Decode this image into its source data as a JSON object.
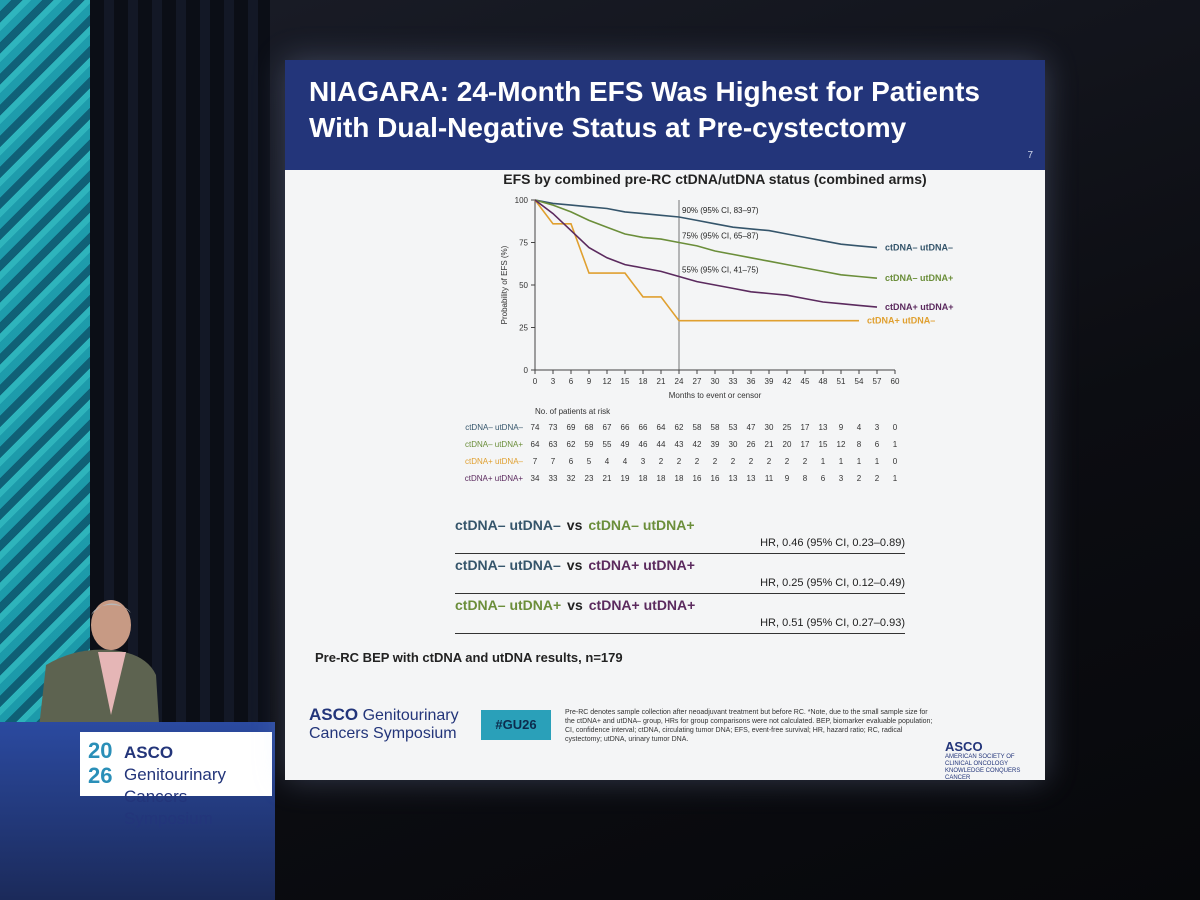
{
  "slide": {
    "title": "NIAGARA: 24-Month EFS Was Highest for Patients With Dual-Negative Status at Pre-cystectomy",
    "page_number": "7",
    "population_note": "Pre-RC BEP with ctDNA and utDNA results, n=179",
    "comparisons": [
      {
        "a": "ctDNA– utDNA–",
        "vs": "vs",
        "b": "ctDNA– utDNA+",
        "hr": "HR, 0.46 (95% CI, 0.23–0.89)"
      },
      {
        "a": "ctDNA– utDNA–",
        "vs": "vs",
        "b": "ctDNA+ utDNA+",
        "hr": "HR, 0.25 (95% CI, 0.12–0.49)"
      },
      {
        "a": "ctDNA– utDNA+",
        "vs": "vs",
        "b": "ctDNA+ utDNA+",
        "hr": "HR, 0.51 (95% CI, 0.27–0.93)"
      }
    ],
    "footnote": "Pre-RC denotes sample collection after neoadjuvant treatment but before RC. *Note, due to the small sample size for the ctDNA+ and utDNA– group, HRs for group comparisons were not calculated. BEP, biomarker evaluable population; CI, confidence interval; ctDNA, circulating tumor DNA; EFS, event-free survival; HR, hazard ratio; RC, radical cystectomy; utDNA, urinary tumor DNA.",
    "logo_left": {
      "brand": "ASCO",
      "line1": "Genitourinary",
      "line2": "Cancers Symposium"
    },
    "hashtag": "#GU26",
    "logo_right": {
      "brand": "ASCO",
      "org": "AMERICAN SOCIETY OF CLINICAL ONCOLOGY",
      "motto": "KNOWLEDGE CONQUERS CANCER"
    }
  },
  "podium": {
    "year_top": "20",
    "year_bottom": "26",
    "brand": "ASCO",
    "line1": "Genitourinary",
    "line2": "Cancers Symposium"
  },
  "chart_data": {
    "type": "line",
    "title": "EFS by combined pre-RC ctDNA/utDNA status (combined arms)",
    "xlabel": "Months to event or censor",
    "ylabel": "Probability of EFS (%)",
    "x": [
      0,
      3,
      6,
      9,
      12,
      15,
      18,
      21,
      24,
      27,
      30,
      33,
      36,
      39,
      42,
      45,
      48,
      51,
      54,
      57,
      60
    ],
    "xlim": [
      0,
      60
    ],
    "xticks": [
      0,
      3,
      6,
      9,
      12,
      15,
      18,
      21,
      24,
      27,
      30,
      33,
      36,
      39,
      42,
      45,
      48,
      51,
      54,
      57,
      60
    ],
    "ylim": [
      0,
      100
    ],
    "yticks": [
      0,
      25,
      50,
      75,
      100
    ],
    "vline": 24,
    "series": [
      {
        "name": "ctDNA– utDNA–",
        "color": "#35556b",
        "values": [
          100,
          98,
          97,
          96,
          95,
          93,
          92,
          91,
          90,
          88,
          86,
          84,
          83,
          82,
          80,
          78,
          76,
          74,
          73,
          72,
          null
        ],
        "at_risk": [
          74,
          73,
          69,
          68,
          67,
          66,
          66,
          64,
          62,
          58,
          58,
          53,
          47,
          30,
          25,
          17,
          13,
          9,
          4,
          3,
          0
        ]
      },
      {
        "name": "ctDNA– utDNA+",
        "color": "#6b8e3a",
        "values": [
          100,
          97,
          93,
          88,
          84,
          80,
          78,
          77,
          75,
          73,
          70,
          68,
          66,
          64,
          62,
          60,
          58,
          56,
          55,
          54,
          null
        ],
        "at_risk": [
          64,
          63,
          62,
          59,
          55,
          49,
          46,
          44,
          43,
          42,
          39,
          30,
          26,
          21,
          20,
          17,
          15,
          12,
          8,
          6,
          1
        ]
      },
      {
        "name": "ctDNA+ utDNA–",
        "color": "#e0a030",
        "values": [
          100,
          86,
          86,
          57,
          57,
          57,
          43,
          43,
          29,
          29,
          29,
          29,
          29,
          29,
          29,
          29,
          29,
          29,
          29,
          null,
          null
        ],
        "at_risk": [
          7,
          7,
          6,
          5,
          4,
          4,
          3,
          2,
          2,
          2,
          2,
          2,
          2,
          2,
          2,
          2,
          1,
          1,
          1,
          1,
          0
        ]
      },
      {
        "name": "ctDNA+ utDNA+",
        "color": "#5b2a5e",
        "values": [
          100,
          92,
          82,
          72,
          66,
          62,
          60,
          58,
          55,
          52,
          50,
          48,
          46,
          45,
          44,
          42,
          40,
          39,
          38,
          37,
          null
        ],
        "at_risk": [
          34,
          33,
          32,
          23,
          21,
          19,
          18,
          18,
          18,
          16,
          16,
          13,
          13,
          11,
          9,
          8,
          6,
          3,
          2,
          2,
          1
        ]
      }
    ],
    "risk_title": "No. of patients at risk",
    "annotations": [
      {
        "text": "90% (95% CI, 83–97)",
        "x": 24,
        "y": 90
      },
      {
        "text": "75% (95% CI, 65–87)",
        "x": 24,
        "y": 75
      },
      {
        "text": "55% (95% CI, 41–75)",
        "x": 24,
        "y": 55
      }
    ]
  }
}
